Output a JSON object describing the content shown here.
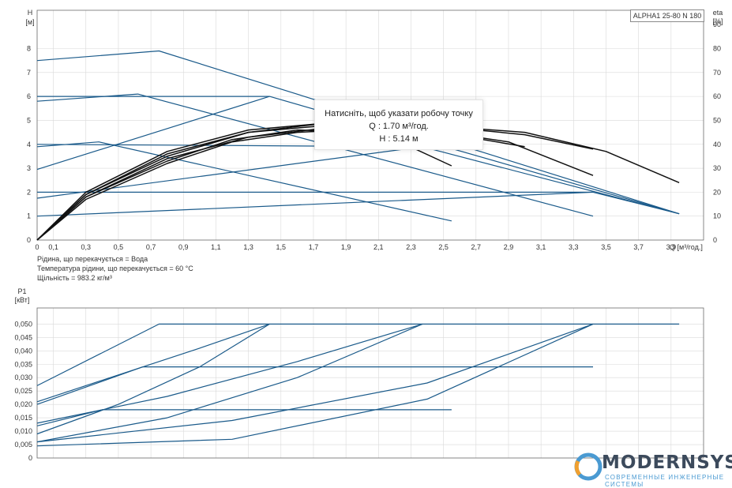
{
  "model_label": "ALPHA1 25-80 N 180",
  "tooltip": {
    "title": "Натисніть, щоб указати робочу точку",
    "q_line": "Q : 1.70 м³/год.",
    "h_line": "H : 5.14 м"
  },
  "medium_info": {
    "liquid": "Рідина, що перекачується = Вода",
    "temperature": "Температура рідини, що перекачується = 60 °C",
    "density": "Щільність = 983.2 кг/м³"
  },
  "logo": {
    "word": "MODERNSYS",
    "tagline": "СОВРЕМЕННЫЕ ИНЖЕНЕРНЫЕ СИСТЕМЫ"
  },
  "colors": {
    "series_blue": "#1a5a8a",
    "series_black": "#111111",
    "logo_dark": "#3c4a5c",
    "logo_blue": "#4a9ad2",
    "logo_orange": "#f0a030"
  },
  "chart_data": [
    {
      "type": "line",
      "title": "",
      "xlabel": "Q [м³/год.]",
      "ylabel": "H [м]",
      "y2label": "eta [%]",
      "xlim": [
        0,
        4.1
      ],
      "ylim": [
        0,
        9.6
      ],
      "y2lim": [
        0,
        96
      ],
      "grid": true,
      "x_ticks": [
        "0",
        "0,1",
        "0,3",
        "0,5",
        "0,7",
        "0,9",
        "1,1",
        "1,3",
        "1,5",
        "1,7",
        "1,9",
        "2,1",
        "2,3",
        "2,5",
        "2,7",
        "2,9",
        "3,1",
        "3,3",
        "3,5",
        "3,7",
        "3,9"
      ],
      "x_tick_values": [
        0,
        0.1,
        0.3,
        0.5,
        0.7,
        0.9,
        1.1,
        1.3,
        1.5,
        1.7,
        1.9,
        2.1,
        2.3,
        2.5,
        2.7,
        2.9,
        3.1,
        3.3,
        3.5,
        3.7,
        3.9
      ],
      "y_ticks": [
        "0",
        "1",
        "2",
        "3",
        "4",
        "5",
        "6",
        "7",
        "8"
      ],
      "y_tick_values": [
        0,
        1,
        2,
        3,
        4,
        5,
        6,
        7,
        8
      ],
      "y2_ticks": [
        "0",
        "10",
        "20",
        "30",
        "40",
        "50",
        "60",
        "70",
        "80",
        "90"
      ],
      "y2_tick_values": [
        0,
        10,
        20,
        30,
        40,
        50,
        60,
        70,
        80,
        90
      ],
      "series": [
        {
          "group": "head_blue",
          "x": [
            0,
            0.75,
            3.95
          ],
          "y": [
            7.5,
            7.9,
            1.1
          ]
        },
        {
          "group": "head_blue",
          "x": [
            0,
            0.62,
            3.42
          ],
          "y": [
            5.8,
            6.1,
            1.0
          ]
        },
        {
          "group": "head_blue",
          "x": [
            0,
            0.38,
            2.55
          ],
          "y": [
            3.9,
            4.1,
            0.8
          ]
        },
        {
          "group": "head_blue",
          "x": [
            0,
            1.43,
            3.95
          ],
          "y": [
            6.0,
            6.0,
            1.1
          ]
        },
        {
          "group": "head_blue",
          "x": [
            0,
            2.37,
            3.95
          ],
          "y": [
            4.0,
            3.9,
            1.1
          ]
        },
        {
          "group": "head_blue",
          "x": [
            0,
            3.42,
            3.95
          ],
          "y": [
            2.0,
            2.0,
            1.1
          ]
        },
        {
          "group": "head_blue",
          "x": [
            0,
            1.43
          ],
          "y": [
            2.95,
            6.0
          ]
        },
        {
          "group": "head_blue",
          "x": [
            0,
            2.37
          ],
          "y": [
            1.75,
            3.9
          ]
        },
        {
          "group": "head_blue",
          "x": [
            0,
            3.42
          ],
          "y": [
            1.0,
            2.0
          ]
        },
        {
          "group": "eta_black",
          "x": [
            0,
            0.3,
            0.8,
            1.2,
            1.6,
            1.9,
            2.2,
            2.55
          ],
          "y": [
            0,
            17,
            32,
            41,
            45,
            46,
            42,
            31
          ]
        },
        {
          "group": "eta_black",
          "x": [
            0,
            0.3,
            0.8,
            1.3,
            1.8,
            2.3,
            2.9,
            3.42
          ],
          "y": [
            0,
            18,
            34,
            43,
            47,
            47,
            41,
            27
          ]
        },
        {
          "group": "eta_black",
          "x": [
            0,
            0.3,
            0.8,
            1.3,
            1.8,
            2.4,
            3.0,
            3.5,
            3.95
          ],
          "y": [
            0,
            19,
            35,
            45,
            49,
            48,
            45,
            37,
            24
          ]
        },
        {
          "group": "eta_black",
          "x": [
            0,
            0.3,
            0.8,
            1.3,
            1.8,
            2.4,
            3.0,
            3.42
          ],
          "y": [
            0,
            20,
            37,
            46,
            49,
            48,
            44,
            38
          ]
        },
        {
          "group": "eta_black",
          "x": [
            0,
            0.3,
            0.8,
            1.2,
            1.6,
            2.0,
            2.3
          ],
          "y": [
            0,
            18,
            33,
            42,
            46,
            45,
            40
          ]
        },
        {
          "group": "eta_black",
          "x": [
            0,
            0.3,
            0.8,
            1.3,
            1.8,
            2.4,
            3.0
          ],
          "y": [
            0,
            19,
            36,
            45,
            48,
            46,
            39
          ]
        }
      ]
    },
    {
      "type": "line",
      "title": "",
      "xlabel": "",
      "ylabel": "P1 [кВт]",
      "xlim": [
        0,
        4.1
      ],
      "ylim": [
        0,
        0.056
      ],
      "grid": true,
      "y_ticks": [
        "0",
        "0,005",
        "0,010",
        "0,015",
        "0,020",
        "0,025",
        "0,030",
        "0,035",
        "0,040",
        "0,045",
        "0,050"
      ],
      "y_tick_values": [
        0,
        0.005,
        0.01,
        0.015,
        0.02,
        0.025,
        0.03,
        0.035,
        0.04,
        0.045,
        0.05
      ],
      "series": [
        {
          "x": [
            0,
            0.75,
            3.95
          ],
          "y": [
            0.027,
            0.05,
            0.05
          ]
        },
        {
          "x": [
            0,
            0.65,
            3.42
          ],
          "y": [
            0.02,
            0.034,
            0.034
          ]
        },
        {
          "x": [
            0,
            0.4,
            2.55
          ],
          "y": [
            0.012,
            0.018,
            0.018
          ]
        },
        {
          "x": [
            0,
            0.5,
            1.0,
            1.43
          ],
          "y": [
            0.021,
            0.031,
            0.041,
            0.05
          ]
        },
        {
          "x": [
            0,
            0.5,
            1.0,
            1.43
          ],
          "y": [
            0.009,
            0.02,
            0.034,
            0.05
          ]
        },
        {
          "x": [
            0,
            0.8,
            1.6,
            2.37
          ],
          "y": [
            0.013,
            0.023,
            0.036,
            0.05
          ]
        },
        {
          "x": [
            0,
            0.8,
            1.6,
            2.37
          ],
          "y": [
            0.006,
            0.015,
            0.03,
            0.05
          ]
        },
        {
          "x": [
            0,
            1.2,
            2.4,
            3.42
          ],
          "y": [
            0.006,
            0.014,
            0.028,
            0.05
          ]
        },
        {
          "x": [
            0,
            1.2,
            2.4,
            3.42
          ],
          "y": [
            0.0045,
            0.007,
            0.022,
            0.05
          ]
        }
      ]
    }
  ]
}
